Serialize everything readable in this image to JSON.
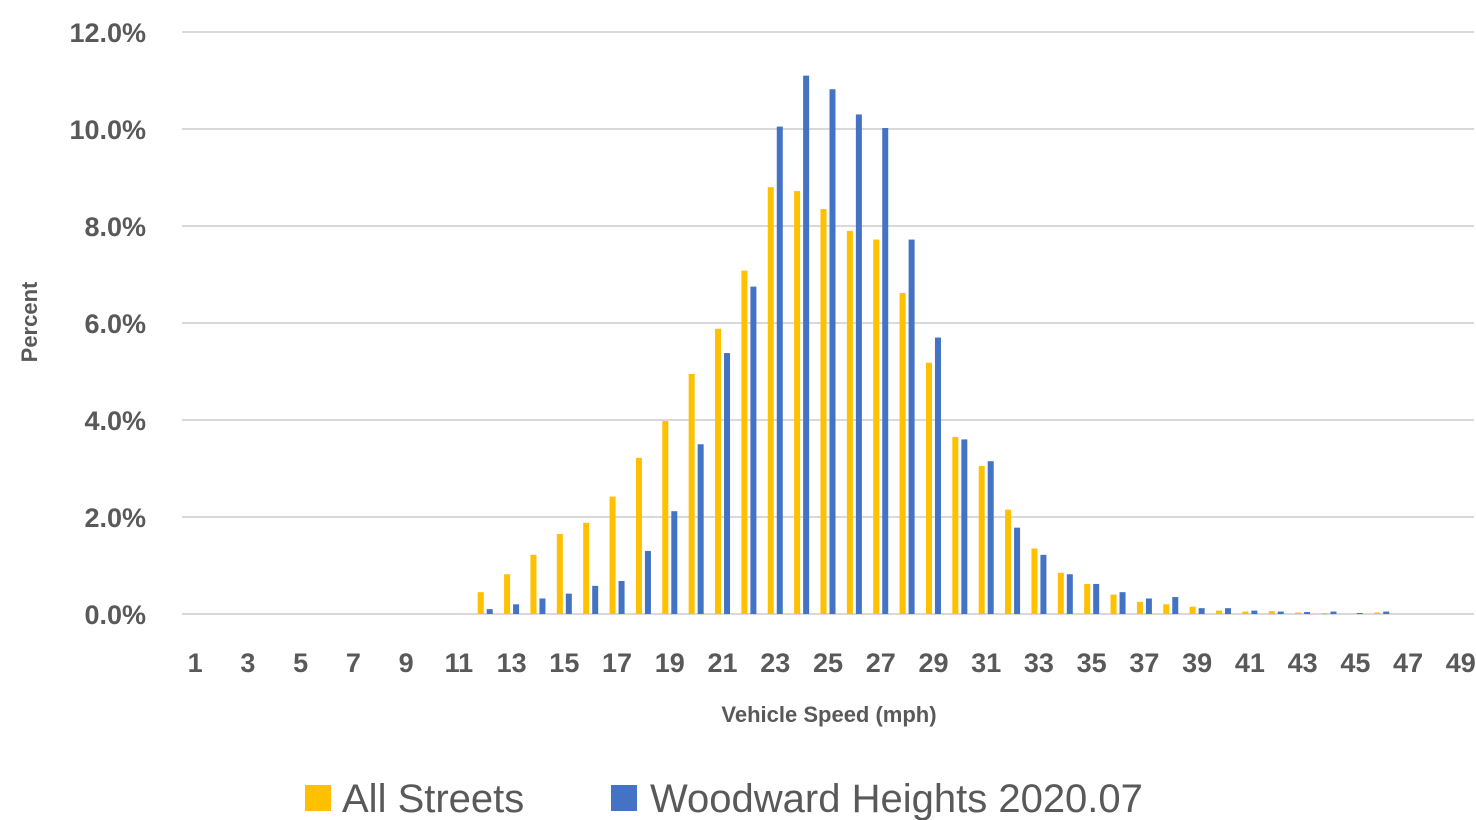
{
  "chart_data": {
    "type": "bar",
    "title": "",
    "xlabel": "Vehicle Speed (mph)",
    "ylabel": "Percent",
    "ylim": [
      0,
      12
    ],
    "y_ticks": [
      "0.0%",
      "2.0%",
      "4.0%",
      "6.0%",
      "8.0%",
      "10.0%",
      "12.0%"
    ],
    "x_tick_labels": [
      "1",
      "3",
      "5",
      "7",
      "9",
      "11",
      "13",
      "15",
      "17",
      "19",
      "21",
      "23",
      "25",
      "27",
      "29",
      "31",
      "33",
      "35",
      "37",
      "39",
      "41",
      "43",
      "45",
      "47",
      "49"
    ],
    "categories": [
      1,
      2,
      3,
      4,
      5,
      6,
      7,
      8,
      9,
      10,
      11,
      12,
      13,
      14,
      15,
      16,
      17,
      18,
      19,
      20,
      21,
      22,
      23,
      24,
      25,
      26,
      27,
      28,
      29,
      30,
      31,
      32,
      33,
      34,
      35,
      36,
      37,
      38,
      39,
      40,
      41,
      42,
      43,
      44,
      45,
      46,
      47,
      48,
      49
    ],
    "grid": true,
    "legend_position": "bottom",
    "series": [
      {
        "name": "All Streets",
        "color": "#FFC000",
        "values": [
          0,
          0,
          0,
          0,
          0,
          0,
          0,
          0,
          0,
          0,
          0,
          0.45,
          0.82,
          1.22,
          1.65,
          1.88,
          2.42,
          3.22,
          3.98,
          4.95,
          5.88,
          7.08,
          8.8,
          8.72,
          8.35,
          7.9,
          7.72,
          6.62,
          5.18,
          3.65,
          3.05,
          2.15,
          1.35,
          0.85,
          0.62,
          0.4,
          0.25,
          0.2,
          0.15,
          0.07,
          0.05,
          0.06,
          0.03,
          0.02,
          0,
          0.03,
          0,
          0,
          0
        ]
      },
      {
        "name": "Woodward Heights 2020.07",
        "color": "#4472C4",
        "values": [
          0,
          0,
          0,
          0,
          0,
          0,
          0,
          0,
          0,
          0,
          0,
          0.1,
          0.2,
          0.32,
          0.42,
          0.58,
          0.68,
          1.3,
          2.12,
          3.5,
          5.38,
          6.75,
          10.05,
          11.1,
          10.82,
          10.3,
          10.02,
          7.72,
          5.7,
          3.6,
          3.15,
          1.78,
          1.22,
          0.82,
          0.62,
          0.45,
          0.32,
          0.35,
          0.12,
          0.12,
          0.07,
          0.05,
          0.04,
          0.05,
          0.02,
          0.05,
          0,
          0,
          0
        ]
      }
    ]
  }
}
